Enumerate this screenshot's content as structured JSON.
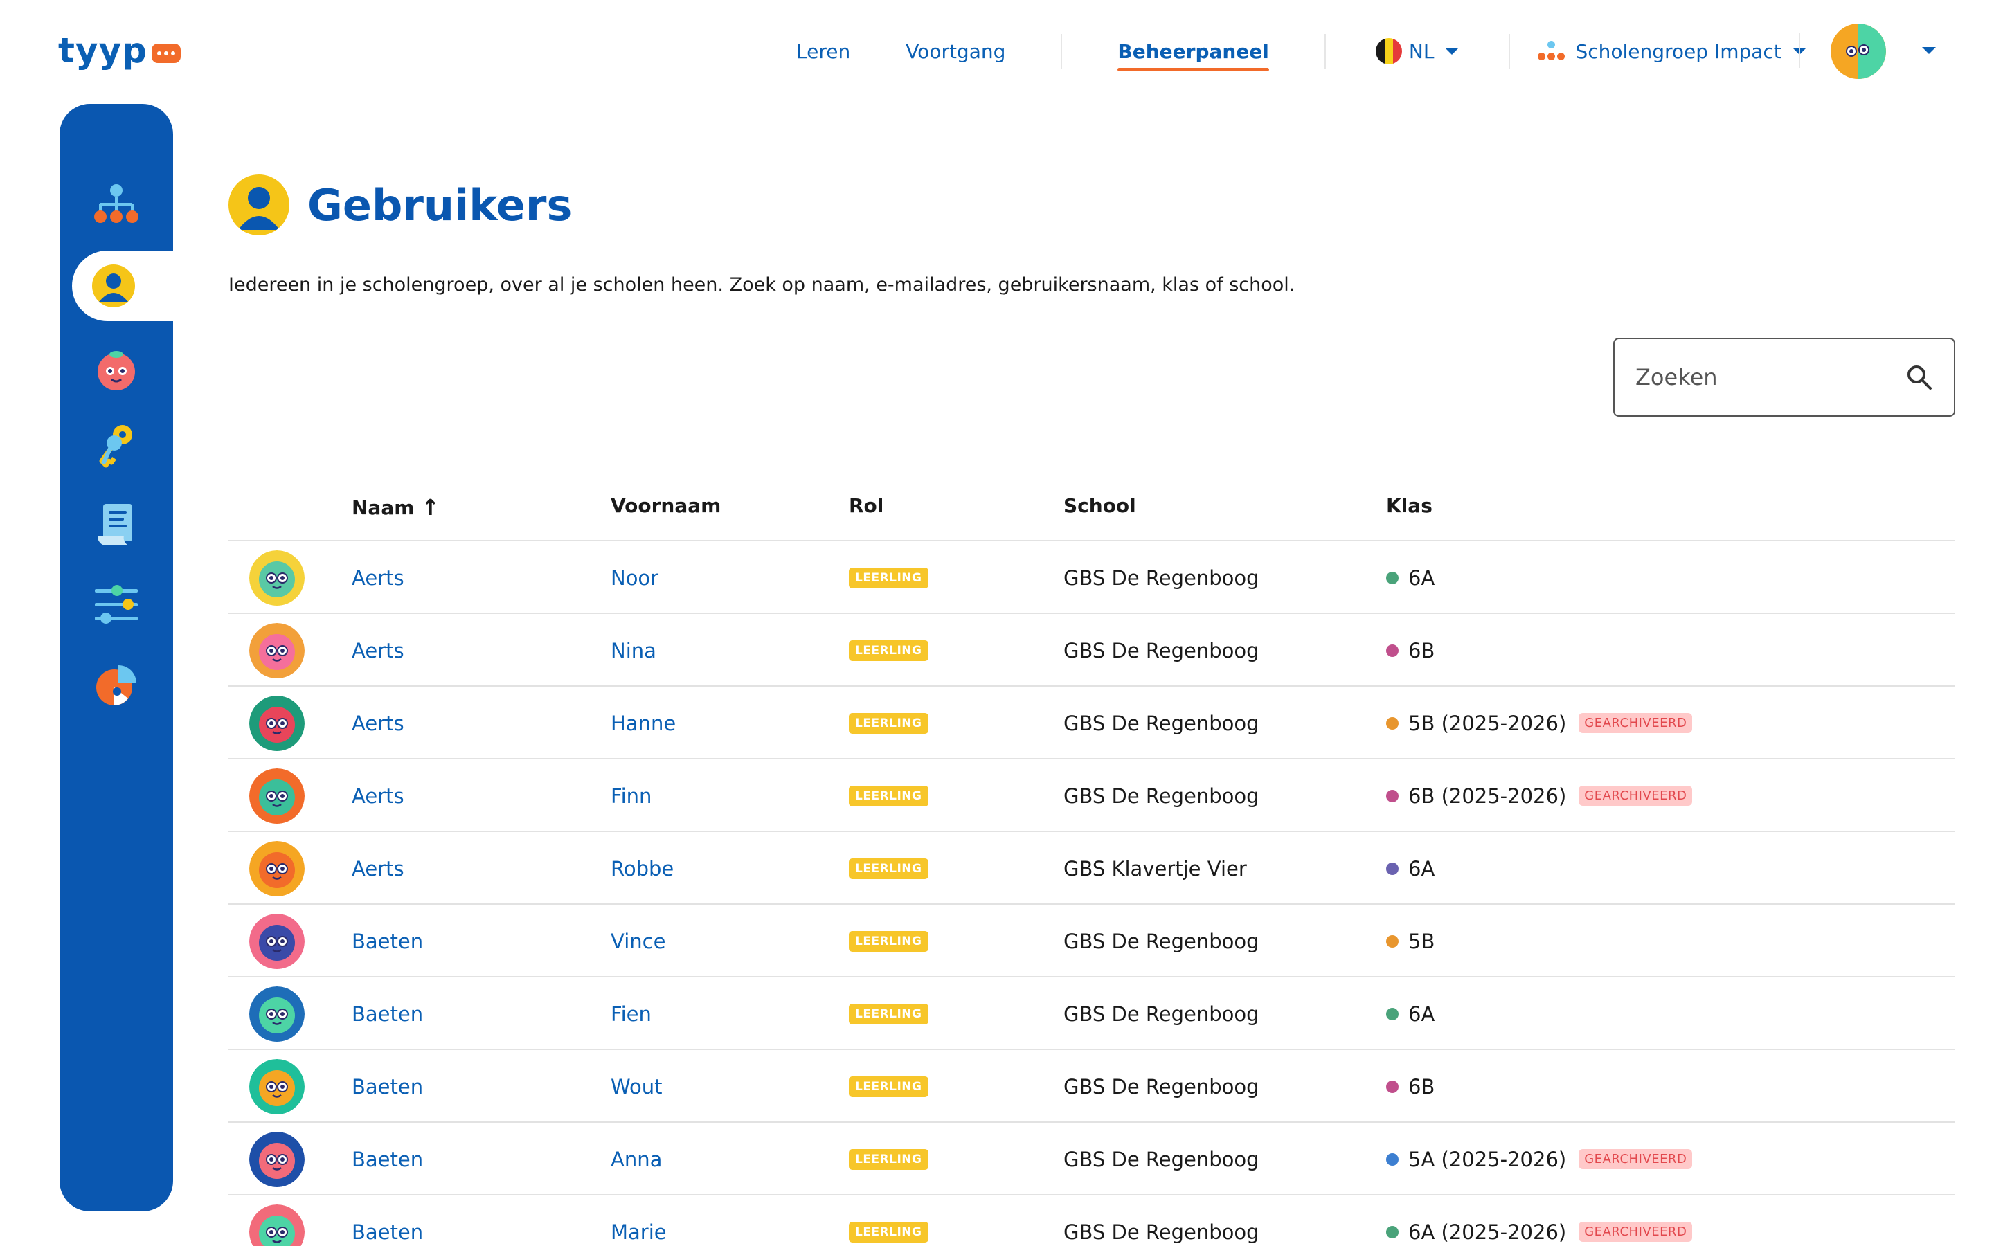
{
  "logo": {
    "text": "tyyp"
  },
  "nav": {
    "items": [
      {
        "label": "Leren"
      },
      {
        "label": "Voortgang"
      },
      {
        "label": "Beheerpaneel",
        "active": true
      }
    ],
    "language": "NL",
    "school_group": "Scholengroep Impact"
  },
  "sidebar": {
    "items": [
      {
        "icon": "organization-tree-icon"
      },
      {
        "icon": "user-icon",
        "active": true
      },
      {
        "icon": "character-face-icon"
      },
      {
        "icon": "keys-icon"
      },
      {
        "icon": "document-scroll-icon"
      },
      {
        "icon": "sliders-icon"
      },
      {
        "icon": "pie-chart-icon"
      }
    ]
  },
  "page": {
    "title": "Gebruikers",
    "description": "Iedereen in je scholengroep, over al je scholen heen. Zoek op naam, e-mailadres, gebruikersnaam, klas of school."
  },
  "search": {
    "placeholder": "Zoeken"
  },
  "table": {
    "headers": {
      "naam": "Naam",
      "voornaam": "Voornaam",
      "rol": "Rol",
      "school": "School",
      "klas": "Klas"
    },
    "sort_indicator": "↑",
    "rows": [
      {
        "naam": "Aerts",
        "voornaam": "Noor",
        "rol": "LEERLING",
        "school": "GBS De Regenboog",
        "klas": "6A",
        "klas_color": "#4aa37a",
        "archived": "",
        "avatar_colors": [
          "#f5d23a",
          "#59c9a5"
        ]
      },
      {
        "naam": "Aerts",
        "voornaam": "Nina",
        "rol": "LEERLING",
        "school": "GBS De Regenboog",
        "klas": "6B",
        "klas_color": "#c04f8c",
        "archived": "",
        "avatar_colors": [
          "#f2a03a",
          "#f56f9b"
        ]
      },
      {
        "naam": "Aerts",
        "voornaam": "Hanne",
        "rol": "LEERLING",
        "school": "GBS De Regenboog",
        "klas": "5B (2025-2026)",
        "klas_color": "#e8962e",
        "archived": "GEARCHIVEERD",
        "avatar_colors": [
          "#1e9b7a",
          "#e8455a"
        ]
      },
      {
        "naam": "Aerts",
        "voornaam": "Finn",
        "rol": "LEERLING",
        "school": "GBS De Regenboog",
        "klas": "6B (2025-2026)",
        "klas_color": "#c04f8c",
        "archived": "GEARCHIVEERD",
        "avatar_colors": [
          "#f26b2a",
          "#3bbf9a"
        ]
      },
      {
        "naam": "Aerts",
        "voornaam": "Robbe",
        "rol": "LEERLING",
        "school": "GBS Klavertje Vier",
        "klas": "6A",
        "klas_color": "#6a62b0",
        "archived": "",
        "avatar_colors": [
          "#f5a623",
          "#f26b2a"
        ]
      },
      {
        "naam": "Baeten",
        "voornaam": "Vince",
        "rol": "LEERLING",
        "school": "GBS De Regenboog",
        "klas": "5B",
        "klas_color": "#e8962e",
        "archived": "",
        "avatar_colors": [
          "#f26b8a",
          "#3a4aa8"
        ]
      },
      {
        "naam": "Baeten",
        "voornaam": "Fien",
        "rol": "LEERLING",
        "school": "GBS De Regenboog",
        "klas": "6A",
        "klas_color": "#4aa37a",
        "archived": "",
        "avatar_colors": [
          "#1e6db8",
          "#4dd4a5"
        ]
      },
      {
        "naam": "Baeten",
        "voornaam": "Wout",
        "rol": "LEERLING",
        "school": "GBS De Regenboog",
        "klas": "6B",
        "klas_color": "#c04f8c",
        "archived": "",
        "avatar_colors": [
          "#1fbf9a",
          "#f5a623"
        ]
      },
      {
        "naam": "Baeten",
        "voornaam": "Anna",
        "rol": "LEERLING",
        "school": "GBS De Regenboog",
        "klas": "5A (2025-2026)",
        "klas_color": "#3d7fd1",
        "archived": "GEARCHIVEERD",
        "avatar_colors": [
          "#1e4fa8",
          "#f26b7a"
        ]
      },
      {
        "naam": "Baeten",
        "voornaam": "Marie",
        "rol": "LEERLING",
        "school": "GBS De Regenboog",
        "klas": "6A (2025-2026)",
        "klas_color": "#4aa37a",
        "archived": "GEARCHIVEERD",
        "avatar_colors": [
          "#f26b7a",
          "#4dd4a5"
        ]
      }
    ]
  },
  "colors": {
    "brand_blue": "#0a57b0",
    "accent_orange": "#f26b2a",
    "role_badge": "#f7c62a",
    "archived_badge_bg": "#ffc9c9",
    "archived_badge_text": "#e2484d"
  }
}
